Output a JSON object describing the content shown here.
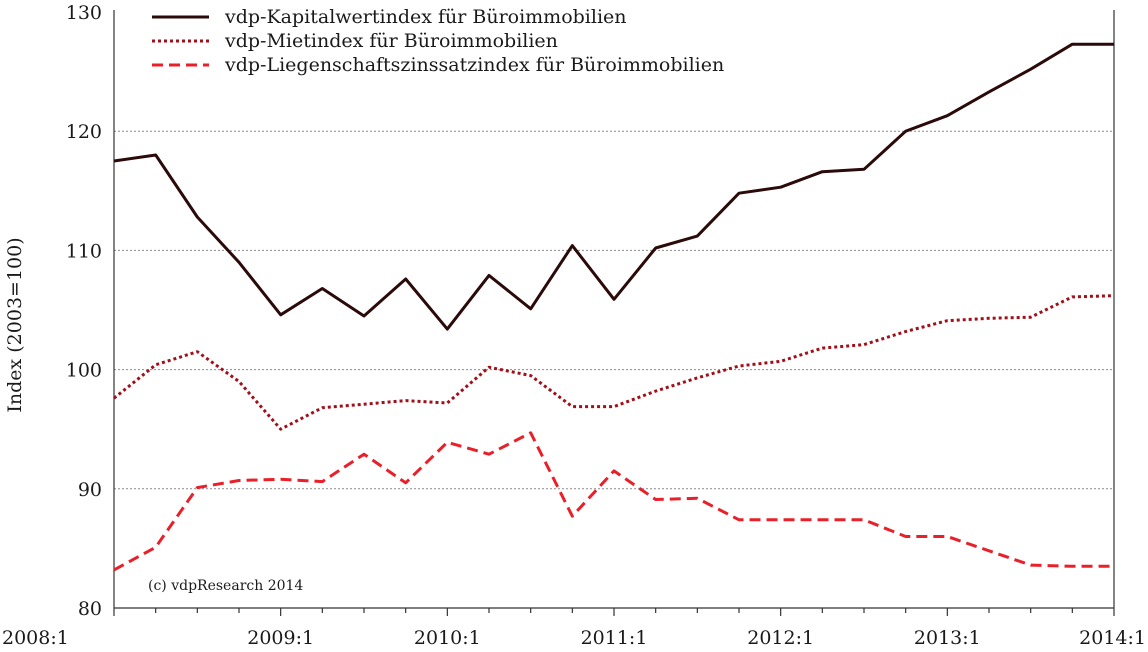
{
  "chart_data": {
    "type": "line",
    "title": "",
    "xlabel": "",
    "ylabel": "Index (2003=100)",
    "ylim": [
      80,
      130
    ],
    "yticks": [
      80,
      90,
      100,
      110,
      120,
      130
    ],
    "grid": true,
    "legend_position": "top-left",
    "annotation": "(c) vdpResearch 2014",
    "x": [
      "2008:1",
      "2008:2",
      "2008:3",
      "2008:4",
      "2009:1",
      "2009:2",
      "2009:3",
      "2009:4",
      "2010:1",
      "2010:2",
      "2010:3",
      "2010:4",
      "2011:1",
      "2011:2",
      "2011:3",
      "2011:4",
      "2012:1",
      "2012:2",
      "2012:3",
      "2012:4",
      "2013:1",
      "2013:2",
      "2013:3",
      "2013:4",
      "2014:1"
    ],
    "xtick_labels": [
      "2008:1",
      "2009:1",
      "2010:1",
      "2011:1",
      "2012:1",
      "2013:1",
      "2014:1"
    ],
    "series": [
      {
        "name": "vdp-Kapitalwertindex für Büroimmobilien",
        "style": "solid",
        "color": "#2b0a0a",
        "values": [
          117.5,
          118.0,
          112.8,
          109.0,
          104.6,
          106.8,
          104.5,
          107.6,
          103.4,
          107.9,
          105.1,
          110.4,
          105.9,
          110.2,
          111.2,
          114.8,
          115.3,
          116.6,
          116.8,
          120.0,
          121.3,
          123.3,
          125.2,
          127.3,
          127.3
        ]
      },
      {
        "name": "vdp-Mietindex für Büroimmobilien",
        "style": "dotted",
        "color": "#a0101a",
        "values": [
          97.6,
          100.4,
          101.5,
          99.0,
          95.0,
          96.8,
          97.1,
          97.4,
          97.2,
          100.2,
          99.5,
          96.9,
          96.9,
          98.2,
          99.3,
          100.3,
          100.7,
          101.8,
          102.1,
          103.2,
          104.1,
          104.3,
          104.4,
          106.1,
          106.2
        ]
      },
      {
        "name": "vdp-Liegenschaftszinssatzindex für Büroimmobilien",
        "style": "dashed",
        "color": "#e8202a",
        "values": [
          83.2,
          85.1,
          90.1,
          90.7,
          90.8,
          90.6,
          92.9,
          90.5,
          93.9,
          92.9,
          94.7,
          87.7,
          91.5,
          89.1,
          89.2,
          87.4,
          87.4,
          87.4,
          87.4,
          86.0,
          86.0,
          84.8,
          83.6,
          83.5,
          83.5
        ]
      }
    ]
  }
}
